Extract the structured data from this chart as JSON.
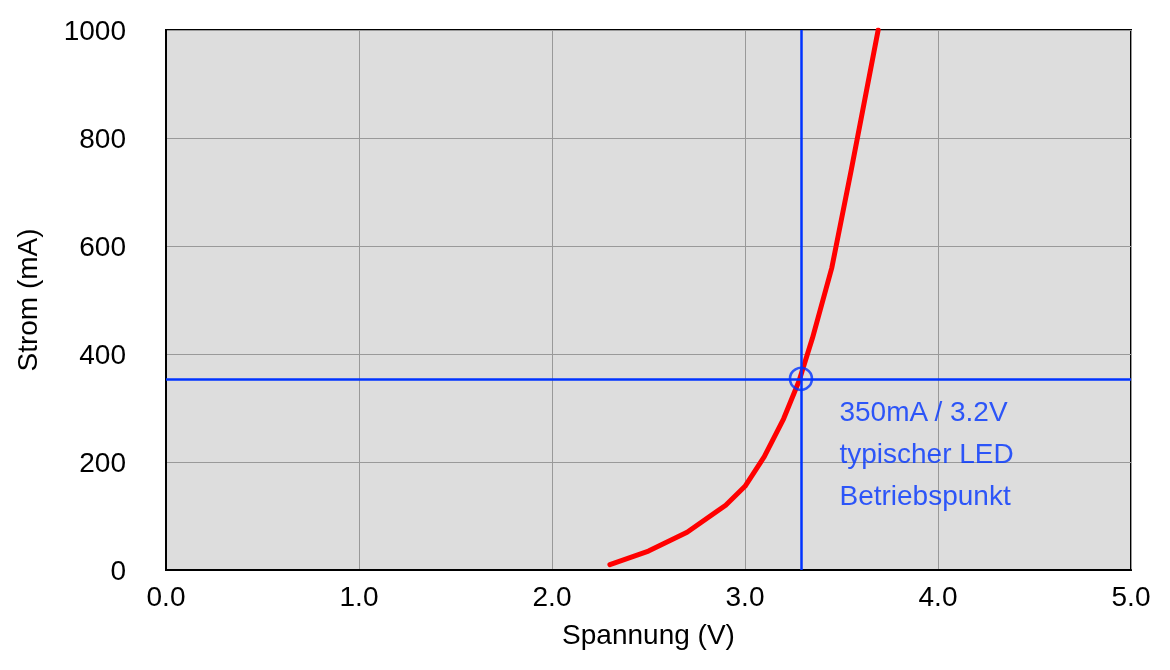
{
  "chart_data": {
    "type": "line",
    "xlabel": "Spannung (V)",
    "ylabel": "Strom (mA)",
    "series": [
      {
        "color": "#ff0000",
        "x": [
          2.3,
          2.5,
          2.7,
          2.9,
          3.0,
          3.1,
          3.2,
          3.28,
          3.35,
          3.45,
          3.55,
          3.62,
          3.69
        ],
        "values": [
          10,
          35,
          70,
          120,
          155,
          210,
          280,
          350,
          430,
          560,
          740,
          870,
          1000
        ]
      }
    ],
    "xlim": [
      0,
      5
    ],
    "xticks": [
      {
        "value": 0,
        "label": "0.0"
      },
      {
        "value": 1,
        "label": "1.0"
      },
      {
        "value": 2,
        "label": "2.0"
      },
      {
        "value": 3,
        "label": "3.0"
      },
      {
        "value": 4,
        "label": "4.0"
      },
      {
        "value": 5,
        "label": "5.0"
      }
    ],
    "ylim": [
      0,
      1000
    ],
    "yticks": [
      0,
      200,
      400,
      600,
      800,
      1000
    ],
    "ref_lines": [
      {
        "axis": "x",
        "value": 3.29,
        "color": "#0033ff"
      },
      {
        "axis": "y",
        "value": 354,
        "color": "#0033ff"
      }
    ],
    "annotations": [
      {
        "text": "350mA / 3.2V\ntypischer LED\nBetriebspunkt",
        "x": 3.29,
        "y": 354
      }
    ],
    "grid": true,
    "marker": "none",
    "line_style": "solid"
  }
}
